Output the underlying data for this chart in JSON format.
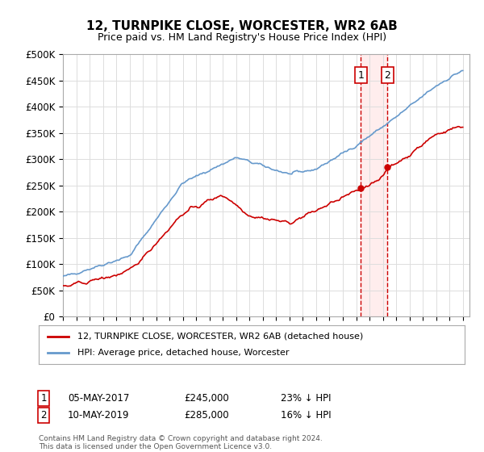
{
  "title": "12, TURNPIKE CLOSE, WORCESTER, WR2 6AB",
  "subtitle": "Price paid vs. HM Land Registry's House Price Index (HPI)",
  "ylabel_ticks": [
    "£0",
    "£50K",
    "£100K",
    "£150K",
    "£200K",
    "£250K",
    "£300K",
    "£350K",
    "£400K",
    "£450K",
    "£500K"
  ],
  "ylim": [
    0,
    500000
  ],
  "xlim_start": 1995.0,
  "xlim_end": 2025.5,
  "sale1_x": 2017.35,
  "sale1_y": 245000,
  "sale1_label": "1",
  "sale2_x": 2019.35,
  "sale2_y": 285000,
  "sale2_label": "2",
  "line1_color": "#cc0000",
  "line2_color": "#6699cc",
  "legend_line1": "12, TURNPIKE CLOSE, WORCESTER, WR2 6AB (detached house)",
  "legend_line2": "HPI: Average price, detached house, Worcester",
  "table_row1": [
    "1",
    "05-MAY-2017",
    "£245,000",
    "23% ↓ HPI"
  ],
  "table_row2": [
    "2",
    "10-MAY-2019",
    "£285,000",
    "16% ↓ HPI"
  ],
  "footer": "Contains HM Land Registry data © Crown copyright and database right 2024.\nThis data is licensed under the Open Government Licence v3.0.",
  "background_color": "#ffffff",
  "grid_color": "#dddddd",
  "shade_color": "#ffdddd"
}
